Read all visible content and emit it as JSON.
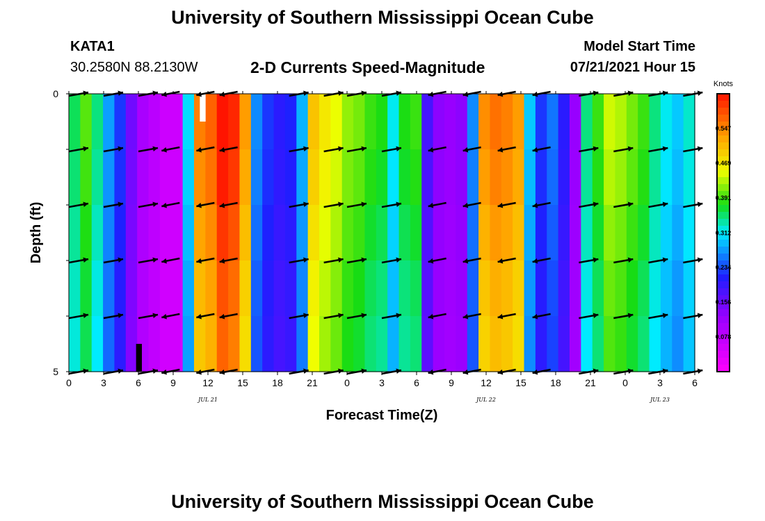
{
  "header": {
    "title": "University of Southern Mississippi Ocean Cube",
    "station": "KATA1",
    "coords": "30.2580N  88.2130W",
    "subtitle": "2-D Currents Speed-Magnitude",
    "start_label": "Model Start Time",
    "start_value": "07/21/2021 Hour 15"
  },
  "footer": {
    "title": "University of Southern Mississippi Ocean Cube"
  },
  "chart_data": {
    "type": "heatmap",
    "title": "2-D Currents Speed-Magnitude",
    "xlabel": "Forecast Time(Z)",
    "ylabel": "Depth (ft)",
    "x_ticks": [
      "0",
      "3",
      "6",
      "9",
      "12",
      "15",
      "18",
      "21",
      "0",
      "3",
      "6",
      "9",
      "12",
      "15",
      "18",
      "21",
      "0",
      "3",
      "6"
    ],
    "x_range_hours": [
      0,
      54
    ],
    "date_labels": [
      {
        "hour": 12,
        "text": "JUL 21"
      },
      {
        "hour": 36,
        "text": "JUL 22"
      },
      {
        "hour": 51,
        "text": "JUL 23"
      }
    ],
    "y_ticks": [
      "0",
      "5"
    ],
    "y_range_ft": [
      0,
      5
    ],
    "depth_levels": 5,
    "colorbar": {
      "title": "Knots",
      "ticks": [
        "0.547",
        "0.469",
        "0.391",
        "0.312",
        "0.234",
        "0.156",
        "0.078"
      ],
      "min": 0.0,
      "max": 0.625
    },
    "speed_by_hour": [
      0.35,
      0.39,
      0.34,
      0.27,
      0.22,
      0.15,
      0.1,
      0.08,
      0.06,
      0.06,
      0.3,
      0.54,
      0.56,
      0.62,
      0.6,
      0.52,
      0.26,
      0.22,
      0.2,
      0.21,
      0.28,
      0.49,
      0.46,
      0.44,
      0.41,
      0.4,
      0.38,
      0.37,
      0.31,
      0.37,
      0.38,
      0.18,
      0.13,
      0.12,
      0.13,
      0.26,
      0.53,
      0.55,
      0.54,
      0.52,
      0.29,
      0.22,
      0.25,
      0.2,
      0.12,
      0.34,
      0.38,
      0.43,
      0.42,
      0.4,
      0.38,
      0.34,
      0.31,
      0.29,
      0.32
    ],
    "depth_factor": [
      1.02,
      1.0,
      0.97,
      0.94,
      0.92
    ],
    "arrow_columns_hours": [
      0,
      3,
      6,
      8,
      11,
      13,
      19,
      22,
      24,
      27,
      31,
      34,
      37,
      40,
      44,
      47,
      50,
      53
    ],
    "arrow_direction": [
      "e",
      "e",
      "e",
      "w",
      "w",
      "w",
      "e",
      "e",
      "e",
      "e",
      "w",
      "w",
      "w",
      "w",
      "e",
      "e",
      "e",
      "e"
    ],
    "arrow_rows_ft": [
      0,
      1,
      2,
      3,
      4,
      5
    ],
    "missing_data_bars": [
      {
        "hour_start": 11.3,
        "hour_end": 11.8,
        "depth_start": 0,
        "depth_end": 0.5,
        "color": "#ffffff"
      },
      {
        "hour_start": 5.8,
        "hour_end": 6.3,
        "depth_start": 4.5,
        "depth_end": 5,
        "color": "#000000"
      }
    ]
  }
}
